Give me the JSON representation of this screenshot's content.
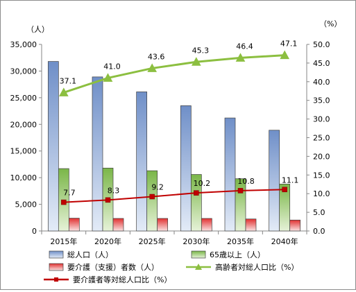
{
  "chart_data": {
    "type": "bar",
    "left_unit": "（人）",
    "right_unit": "（%）",
    "categories": [
      "2015年",
      "2020年",
      "2025年",
      "2030年",
      "2035年",
      "2040年"
    ],
    "y_left": {
      "min": 0,
      "max": 35000,
      "step": 5000,
      "tick_labels": [
        "0",
        "5,000",
        "10,000",
        "15,000",
        "20,000",
        "25,000",
        "30,000",
        "35,000"
      ]
    },
    "y_right": {
      "min": 0,
      "max": 50,
      "step": 5,
      "tick_labels": [
        "0.0",
        "5.0",
        "10.0",
        "15.0",
        "20.0",
        "25.0",
        "30.0",
        "35.0",
        "40.0",
        "45.0",
        "50.0"
      ]
    },
    "grid": false,
    "legend_position": "bottom",
    "series": [
      {
        "name": "総人口（人）",
        "kind": "bar",
        "axis": "left",
        "color": "#6f8fc8",
        "values": [
          31800,
          28900,
          26100,
          23500,
          21200,
          18900
        ]
      },
      {
        "name": "65歳以上（人）",
        "kind": "bar",
        "axis": "left",
        "color": "#7ab648",
        "values": [
          11700,
          11800,
          11300,
          10600,
          9800,
          8800
        ]
      },
      {
        "name": "要介護（支援）者数（人）",
        "kind": "bar",
        "axis": "left",
        "color": "#e03030",
        "values": [
          2400,
          2350,
          2350,
          2350,
          2250,
          2050
        ]
      },
      {
        "name": "高齢者対総人口比（%）",
        "kind": "line",
        "axis": "right",
        "color": "#8cbf40",
        "marker": "triangle",
        "values": [
          37.1,
          41.0,
          43.6,
          45.3,
          46.4,
          47.1
        ],
        "labels": [
          "37.1",
          "41.0",
          "43.6",
          "45.3",
          "46.4",
          "47.1"
        ]
      },
      {
        "name": "要介護者等対総人口比（%）",
        "kind": "line",
        "axis": "right",
        "color": "#c00000",
        "marker": "square",
        "values": [
          7.7,
          8.3,
          9.2,
          10.2,
          10.8,
          11.1
        ],
        "labels": [
          "7.7",
          "8.3",
          "9.2",
          "10.2",
          "10.8",
          "11.1"
        ]
      }
    ]
  }
}
